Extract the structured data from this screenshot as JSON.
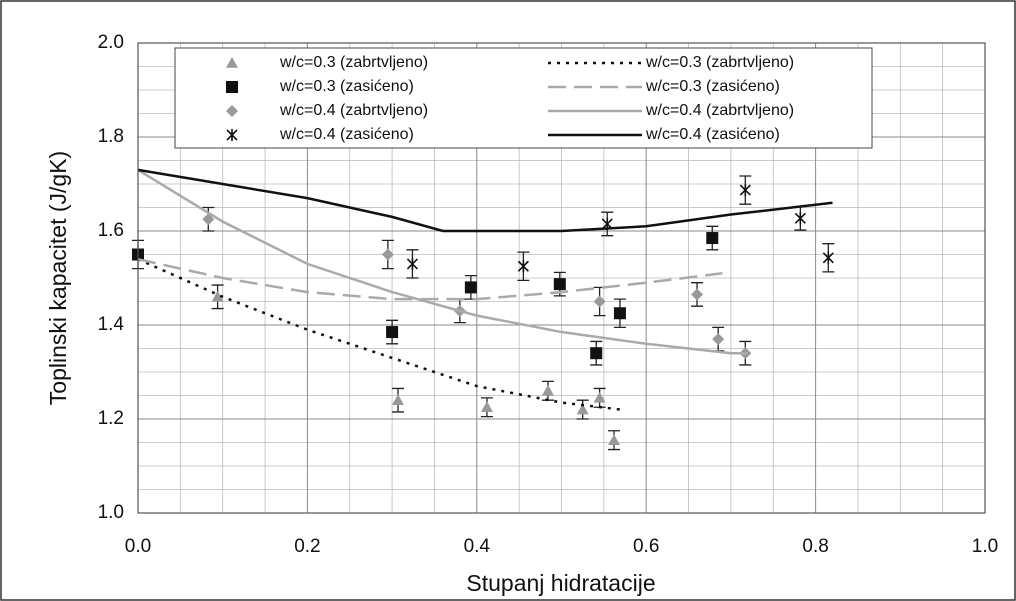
{
  "chart_data": {
    "type": "scatter",
    "xlabel": "Stupanj hidratacije",
    "ylabel": "Toplinski kapacitet (J/gK)",
    "xlim": [
      0,
      1
    ],
    "ylim": [
      1,
      2
    ],
    "xticks": [
      {
        "value": 0,
        "label": "0.0"
      },
      0.2,
      0.4,
      0.6,
      0.8,
      {
        "value": 1,
        "label": "1.0"
      }
    ],
    "yticks": [
      {
        "value": 1,
        "label": "1.0"
      },
      1.2,
      1.4,
      1.6,
      1.8,
      {
        "value": 2,
        "label": "2.0"
      }
    ],
    "grid": true,
    "legend": "top",
    "series": [
      {
        "name": "w/c=0.3 (zabrtvljeno)",
        "mode": "markers",
        "marker": "triangle",
        "color": "#999999",
        "x": [
          0.094,
          0.307,
          0.412,
          0.484,
          0.525,
          0.545,
          0.562
        ],
        "values": [
          1.46,
          1.24,
          1.225,
          1.26,
          1.22,
          1.245,
          1.155
        ],
        "errors": [
          0.025,
          0.025,
          0.02,
          0.02,
          0.02,
          0.02,
          0.02
        ]
      },
      {
        "name": "w/c=0.3 (zasićeno)",
        "mode": "markers",
        "marker": "square",
        "color": "#111111",
        "x": [
          0.0,
          0.3,
          0.393,
          0.498,
          0.541,
          0.569,
          0.678
        ],
        "values": [
          1.55,
          1.385,
          1.48,
          1.487,
          1.34,
          1.425,
          1.585
        ],
        "errors": [
          0.03,
          0.025,
          0.025,
          0.025,
          0.025,
          0.03,
          0.025
        ]
      },
      {
        "name": "w/c=0.4 (zabrtvljeno)",
        "mode": "markers",
        "marker": "diamond",
        "color": "#999999",
        "x": [
          0.083,
          0.295,
          0.38,
          0.545,
          0.66,
          0.685,
          0.717
        ],
        "values": [
          1.625,
          1.55,
          1.43,
          1.45,
          1.465,
          1.37,
          1.34
        ],
        "errors": [
          0.025,
          0.03,
          0.025,
          0.03,
          0.025,
          0.025,
          0.025
        ]
      },
      {
        "name": "w/c=0.4 (zasićeno)",
        "mode": "markers",
        "marker": "x",
        "color": "#111111",
        "x": [
          0.324,
          0.455,
          0.554,
          0.717,
          0.782,
          0.815
        ],
        "values": [
          1.53,
          1.525,
          1.615,
          1.687,
          1.627,
          1.543
        ],
        "errors": [
          0.03,
          0.03,
          0.025,
          0.03,
          0.025,
          0.03
        ]
      },
      {
        "name": "w/c=0.3 (zabrtvljeno)",
        "mode": "line",
        "dash": "3 6",
        "color": "#111111",
        "width": 2.5,
        "x": [
          0,
          0.1,
          0.2,
          0.3,
          0.4,
          0.5,
          0.57
        ],
        "values": [
          1.54,
          1.46,
          1.39,
          1.33,
          1.27,
          1.235,
          1.22
        ]
      },
      {
        "name": "w/c=0.3 (zasićeno)",
        "mode": "line",
        "dash": "18 8",
        "color": "#aaaaaa",
        "width": 2.5,
        "x": [
          0,
          0.1,
          0.2,
          0.3,
          0.4,
          0.5,
          0.6,
          0.69
        ],
        "values": [
          1.54,
          1.5,
          1.47,
          1.455,
          1.455,
          1.47,
          1.49,
          1.51
        ]
      },
      {
        "name": "w/c=0.4 (zabrtvljeno)",
        "mode": "line",
        "dash": "none",
        "color": "#aaaaaa",
        "width": 2.5,
        "x": [
          0,
          0.1,
          0.2,
          0.3,
          0.4,
          0.5,
          0.6,
          0.7,
          0.72
        ],
        "values": [
          1.73,
          1.62,
          1.53,
          1.47,
          1.42,
          1.385,
          1.36,
          1.34,
          1.34
        ]
      },
      {
        "name": "w/c=0.4 (zasićeno)",
        "mode": "line",
        "dash": "none",
        "color": "#111111",
        "width": 2.5,
        "x": [
          0,
          0.1,
          0.2,
          0.3,
          0.36,
          0.4,
          0.5,
          0.6,
          0.7,
          0.82
        ],
        "values": [
          1.73,
          1.7,
          1.67,
          1.63,
          1.6,
          1.6,
          1.6,
          1.61,
          1.635,
          1.66
        ]
      }
    ]
  }
}
